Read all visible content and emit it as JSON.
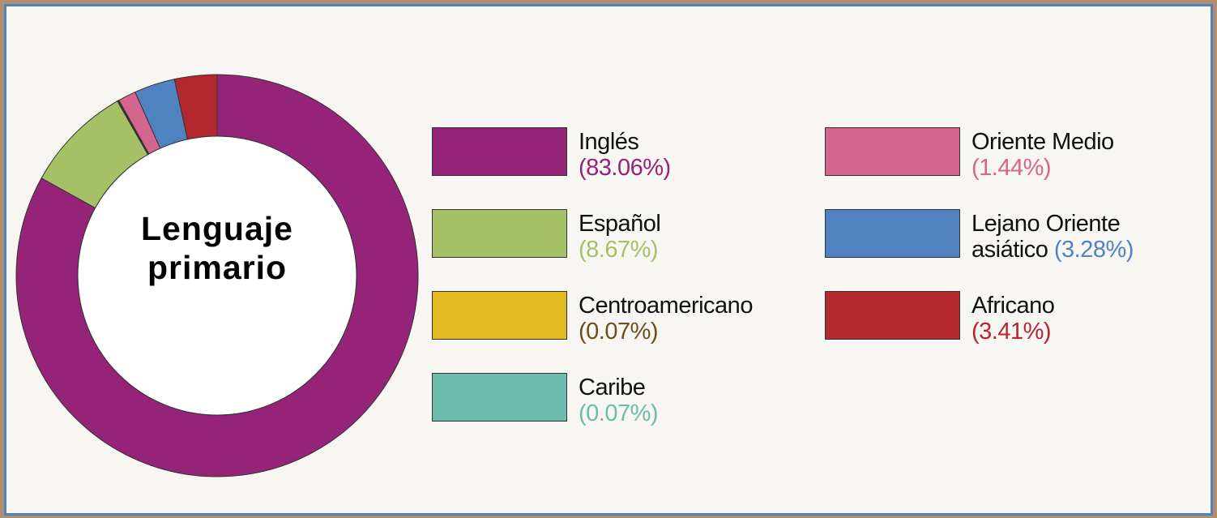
{
  "chart_data": {
    "type": "donut",
    "title": "Lenguaje primario",
    "categories": [
      "Inglés",
      "Español",
      "Centroamericano",
      "Caribe",
      "Oriente Medio",
      "Lejano Oriente asiático",
      "Africano"
    ],
    "values": [
      83.06,
      8.67,
      0.07,
      0.07,
      1.44,
      3.28,
      3.41
    ],
    "value_labels": [
      "(83.06%)",
      "(8.67%)",
      "(0.07%)",
      "(0.07%)",
      "(1.44%)",
      "(3.28%)",
      "(3.41%)"
    ],
    "colors": [
      "#952377",
      "#a6c065",
      "#e3b921",
      "#6dbcab",
      "#d3658f",
      "#5082c0",
      "#b3282e"
    ],
    "label_colors": [
      "#952377",
      "#a6c065",
      "#6b4f1d",
      "#6dbcab",
      "#d3658f",
      "#5082c0",
      "#b3282e"
    ]
  }
}
